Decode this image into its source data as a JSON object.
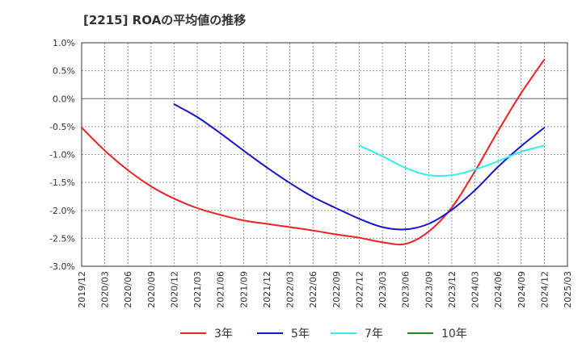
{
  "chart_data": {
    "type": "line",
    "title": "[2215]  ROAの平均値の推移",
    "x": [
      "2019/12",
      "2020/03",
      "2020/06",
      "2020/09",
      "2020/12",
      "2021/03",
      "2021/06",
      "2021/09",
      "2021/12",
      "2022/03",
      "2022/06",
      "2022/09",
      "2022/12",
      "2023/03",
      "2023/06",
      "2023/09",
      "2023/12",
      "2024/03",
      "2024/06",
      "2024/09",
      "2024/12",
      "2025/03"
    ],
    "ylim": [
      -3.0,
      1.0
    ],
    "yticks": [
      1.0,
      0.5,
      0.0,
      -0.5,
      -1.0,
      -1.5,
      -2.0,
      -2.5,
      -3.0
    ],
    "ytick_labels": [
      "1.0%",
      "0.5%",
      "0.0%",
      "-0.5%",
      "-1.0%",
      "-1.5%",
      "-2.0%",
      "-2.5%",
      "-3.0%"
    ],
    "grid": true,
    "legend_position": "bottom",
    "series": [
      {
        "name": "3年",
        "color": "#ee2222",
        "values": [
          -0.52,
          -0.93,
          -1.28,
          -1.57,
          -1.79,
          -1.96,
          -2.08,
          -2.18,
          -2.24,
          -2.3,
          -2.36,
          -2.43,
          -2.49,
          -2.57,
          -2.6,
          -2.38,
          -1.95,
          -1.3,
          -0.58,
          0.1,
          0.7,
          null
        ]
      },
      {
        "name": "5年",
        "color": "#1515cc",
        "values": [
          null,
          null,
          null,
          null,
          -0.1,
          -0.33,
          -0.62,
          -0.93,
          -1.23,
          -1.51,
          -1.76,
          -1.96,
          -2.15,
          -2.3,
          -2.34,
          -2.24,
          -1.99,
          -1.64,
          -1.22,
          -0.85,
          -0.52,
          null
        ]
      },
      {
        "name": "7年",
        "color": "#33eeee",
        "values": [
          null,
          null,
          null,
          null,
          null,
          null,
          null,
          null,
          null,
          null,
          null,
          null,
          -0.84,
          -1.03,
          -1.24,
          -1.37,
          -1.37,
          -1.27,
          -1.12,
          -0.95,
          -0.84,
          null
        ]
      },
      {
        "name": "10年",
        "color": "#228822",
        "values": [
          null,
          null,
          null,
          null,
          null,
          null,
          null,
          null,
          null,
          null,
          null,
          null,
          null,
          null,
          null,
          null,
          null,
          null,
          null,
          null,
          null,
          null
        ]
      }
    ]
  }
}
